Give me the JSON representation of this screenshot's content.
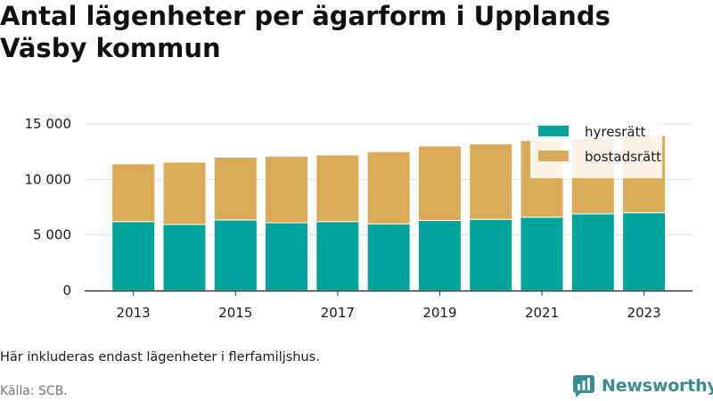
{
  "title": "Antal lägenheter per ägarform i Upplands Väsby kommun",
  "note": "Här inkluderas endast lägenheter i flerfamiljshus.",
  "source": "Källa: SCB.",
  "brand": {
    "name": "Newsworthy",
    "icon": "newsworthy-logo-icon"
  },
  "colors": {
    "hyresratt": "#00a39a",
    "bostadsratt": "#d9ab58",
    "grid": "#d9d9d9",
    "axis": "#333333"
  },
  "chart_data": {
    "type": "bar",
    "stacked": true,
    "title": "Antal lägenheter per ägarform i Upplands Väsby kommun",
    "xlabel": "",
    "ylabel": "",
    "categories": [
      "2013",
      "2014",
      "2015",
      "2016",
      "2017",
      "2018",
      "2019",
      "2020",
      "2021",
      "2022",
      "2023"
    ],
    "x_tick_labels": [
      "2013",
      "2015",
      "2017",
      "2019",
      "2021",
      "2023"
    ],
    "y_tick_labels": [
      "0",
      "5 000",
      "10 000",
      "15 000"
    ],
    "ylim": [
      0,
      15000
    ],
    "grid": true,
    "legend_position": "top-right",
    "series": [
      {
        "name": "hyresrätt",
        "color": "#00a39a",
        "values": [
          6200,
          5950,
          6350,
          6100,
          6200,
          6000,
          6300,
          6400,
          6600,
          6900,
          7000
        ]
      },
      {
        "name": "bostadsrätt",
        "color": "#d9ab58",
        "values": [
          5200,
          5600,
          5650,
          6000,
          6000,
          6500,
          6700,
          6800,
          6900,
          6800,
          6950
        ]
      }
    ]
  }
}
